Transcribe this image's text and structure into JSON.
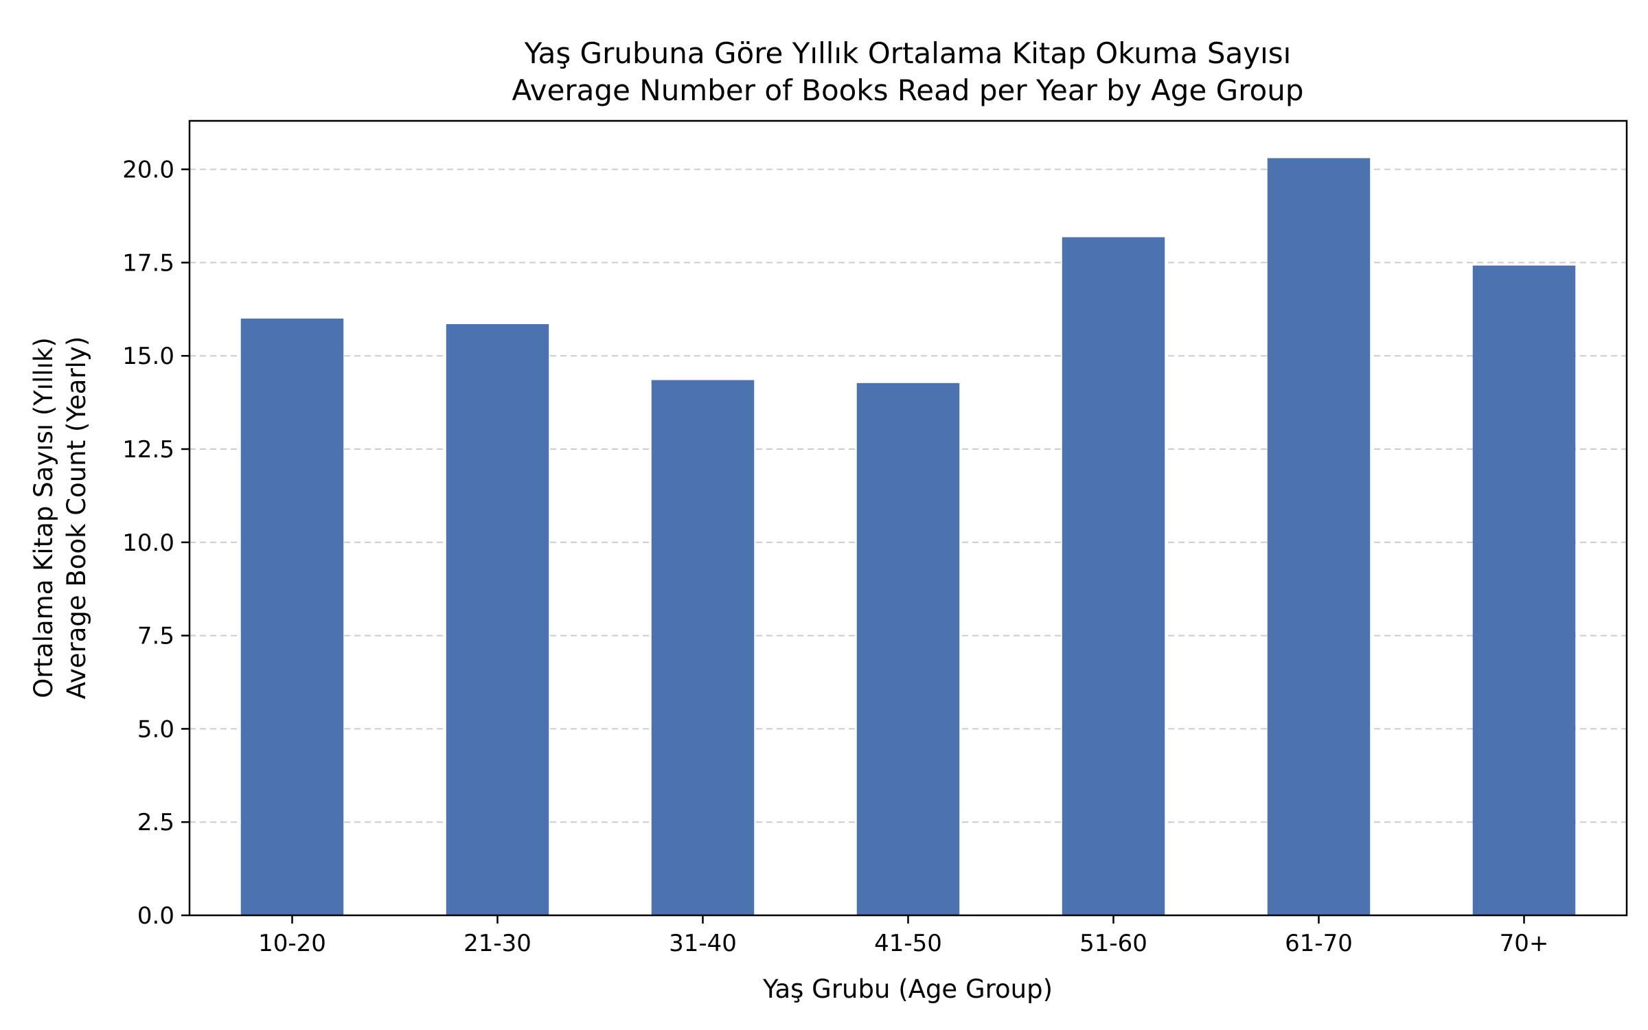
{
  "chart_data": {
    "type": "bar",
    "title_line1": "Yaş Grubuna Göre Yıllık Ortalama Kitap Okuma Sayısı",
    "title_line2": "Average Number of Books Read per Year by Age Group",
    "xlabel": "Yaş Grubu (Age Group)",
    "ylabel_line1": "Ortalama Kitap Sayısı (Yıllık)",
    "ylabel_line2": "Average Book Count (Yearly)",
    "categories": [
      "10-20",
      "21-30",
      "31-40",
      "41-50",
      "51-60",
      "61-70",
      "70+"
    ],
    "values": [
      16.0,
      15.85,
      14.35,
      14.27,
      18.18,
      20.3,
      17.42
    ],
    "ylim": [
      0,
      21.3
    ],
    "yticks": [
      "0.0",
      "2.5",
      "5.0",
      "7.5",
      "10.0",
      "12.5",
      "15.0",
      "17.5",
      "20.0"
    ],
    "grid": "horizontal dashed",
    "bar_color": "#4c72b0",
    "grid_color": "#cccccc"
  }
}
